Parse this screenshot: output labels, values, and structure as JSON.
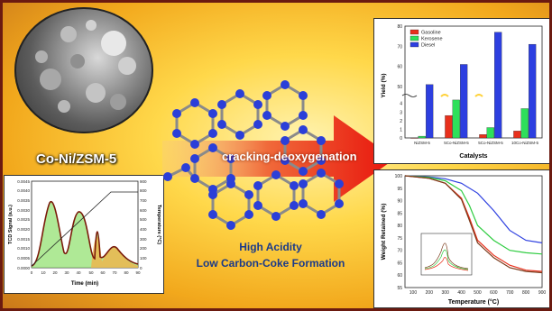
{
  "catalyst_label": "Co-Ni/ZSM-5",
  "process_label": "cracking-deoxygenation",
  "properties": [
    "High Acidity",
    "Low Carbon-Coke Formation"
  ],
  "tpd_chart": {
    "ylabel": "TCD Signal (a.u.)",
    "y2label": "Temperature (°C)",
    "xlabel": "Time (min)",
    "x_ticks": [
      "0",
      "10",
      "20",
      "30",
      "40",
      "50",
      "60",
      "70",
      "80",
      "90"
    ],
    "y_ticks": [
      "0.0000",
      "0.0005",
      "0.0010",
      "0.0015",
      "0.0020",
      "0.0025",
      "0.0030",
      "0.0035",
      "0.0040",
      "0.0045"
    ],
    "y2_ticks": [
      "0",
      "100",
      "200",
      "300",
      "400",
      "500",
      "600",
      "700",
      "800",
      "900"
    ]
  },
  "chart_data": [
    {
      "type": "bar",
      "title": "",
      "xlabel": "Catalysts",
      "ylabel": "Yield (%)",
      "categories": [
        "NiZSM-5",
        "5Co-NiZSM-5",
        "5Co-NiZSM-5",
        "10Co-NiZSM-5"
      ],
      "series": [
        {
          "name": "Gasoline",
          "color": "#e8301c",
          "values": [
            0,
            2.6,
            0.4,
            0.8
          ]
        },
        {
          "name": "Kerosene",
          "color": "#2ee05a",
          "values": [
            0.2,
            4.4,
            1.2,
            3.4
          ]
        },
        {
          "name": "Diesel",
          "color": "#2d3fe0",
          "values": [
            51,
            61,
            77,
            71
          ]
        }
      ],
      "y_ticks_low": [
        "0",
        "1",
        "2",
        "3",
        "4"
      ],
      "y_ticks_high": [
        "50",
        "60",
        "70",
        "80"
      ]
    },
    {
      "type": "line",
      "title": "",
      "xlabel": "Temperature (°C)",
      "ylabel": "Weight Retained (%)",
      "x_ticks": [
        "100",
        "200",
        "300",
        "400",
        "500",
        "600",
        "700",
        "800",
        "900"
      ],
      "y_ticks": [
        "55",
        "60",
        "65",
        "70",
        "75",
        "80",
        "85",
        "90",
        "95",
        "100"
      ],
      "xlim": [
        50,
        900
      ],
      "ylim": [
        55,
        100
      ],
      "series": [
        {
          "color": "#2d3fe0",
          "x": [
            50,
            200,
            300,
            400,
            500,
            600,
            700,
            800,
            900
          ],
          "y": [
            100,
            99.5,
            98.8,
            97,
            93,
            86,
            78,
            74,
            73
          ]
        },
        {
          "color": "#2ecc40",
          "x": [
            50,
            200,
            300,
            400,
            450,
            500,
            600,
            700,
            800,
            900
          ],
          "y": [
            100,
            99.3,
            98,
            94,
            88,
            80,
            74,
            70,
            69,
            68.5
          ]
        },
        {
          "color": "#e8301c",
          "x": [
            50,
            200,
            300,
            400,
            450,
            500,
            600,
            700,
            800,
            900
          ],
          "y": [
            100,
            99,
            97,
            91,
            83,
            74,
            68,
            64,
            62,
            61.5
          ]
        },
        {
          "color": "#7a3a1a",
          "x": [
            50,
            200,
            300,
            400,
            450,
            500,
            600,
            700,
            800,
            900
          ],
          "y": [
            100,
            99,
            97,
            90.5,
            82,
            73,
            67,
            63,
            61.5,
            61
          ]
        }
      ]
    }
  ]
}
